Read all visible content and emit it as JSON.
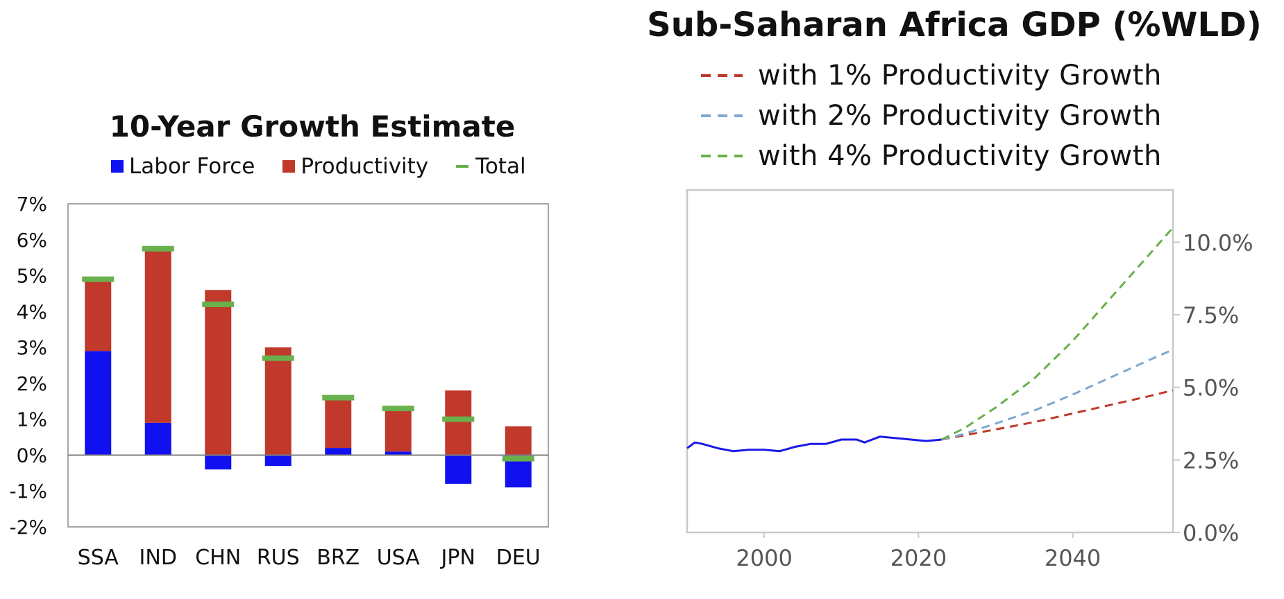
{
  "chart_data": [
    {
      "type": "bar",
      "title": "10-Year Growth Estimate",
      "categories": [
        "SSA",
        "IND",
        "CHN",
        "RUS",
        "BRZ",
        "USA",
        "JPN",
        "DEU"
      ],
      "series": [
        {
          "name": "Labor Force",
          "color": "#1010f0",
          "values": [
            2.9,
            0.9,
            -0.4,
            -0.3,
            0.2,
            0.1,
            -0.8,
            -0.9
          ]
        },
        {
          "name": "Productivity",
          "color": "#c0392b",
          "values": [
            1.95,
            4.8,
            4.6,
            3.0,
            1.35,
            1.15,
            1.8,
            0.8
          ]
        },
        {
          "name": "Total",
          "color": "#6ab04c",
          "values": [
            4.9,
            5.75,
            4.2,
            2.7,
            1.6,
            1.3,
            1.0,
            -0.1
          ]
        }
      ],
      "yticks": [
        "7%",
        "6%",
        "5%",
        "4%",
        "3%",
        "2%",
        "1%",
        "0%",
        "-1%",
        "-2%"
      ],
      "ylim": [
        -2,
        7
      ],
      "legend_position": "top"
    },
    {
      "type": "line",
      "title": "Sub-Saharan Africa GDP (%WLD)",
      "xticks": [
        "2000",
        "2020",
        "2040"
      ],
      "yticks": [
        "10.0%",
        "7.5%",
        "5.0%",
        "2.5%",
        "0.0%"
      ],
      "xlim": [
        1990,
        2053
      ],
      "ylim": [
        0,
        11.8
      ],
      "legend_position": "top",
      "series": [
        {
          "name": "",
          "style": "solid",
          "color": "#1a1ae6",
          "x": [
            1990,
            1991,
            1992,
            1994,
            1996,
            1998,
            2000,
            2002,
            2004,
            2006,
            2008,
            2010,
            2012,
            2013,
            2015,
            2017,
            2019,
            2021,
            2023
          ],
          "y": [
            2.9,
            3.1,
            3.05,
            2.9,
            2.8,
            2.85,
            2.85,
            2.8,
            2.95,
            3.05,
            3.05,
            3.2,
            3.2,
            3.1,
            3.3,
            3.25,
            3.2,
            3.15,
            3.2
          ]
        },
        {
          "name": "with 1% Productivity Growth",
          "style": "dashed",
          "color": "#c0392b",
          "x": [
            2023,
            2026,
            2030,
            2035,
            2040,
            2045,
            2050,
            2053
          ],
          "y": [
            3.2,
            3.35,
            3.55,
            3.8,
            4.1,
            4.4,
            4.7,
            4.9
          ]
        },
        {
          "name": "with 2% Productivity Growth",
          "style": "dashed",
          "color": "#7fa8d0",
          "x": [
            2023,
            2026,
            2030,
            2035,
            2040,
            2045,
            2050,
            2053
          ],
          "y": [
            3.2,
            3.4,
            3.75,
            4.2,
            4.75,
            5.35,
            5.95,
            6.3
          ]
        },
        {
          "name": "with 4% Productivity Growth",
          "style": "dashed",
          "color": "#6ab04c",
          "x": [
            2023,
            2026,
            2030,
            2035,
            2040,
            2045,
            2050,
            2053
          ],
          "y": [
            3.2,
            3.6,
            4.3,
            5.3,
            6.6,
            8.1,
            9.6,
            10.5
          ]
        }
      ]
    }
  ]
}
